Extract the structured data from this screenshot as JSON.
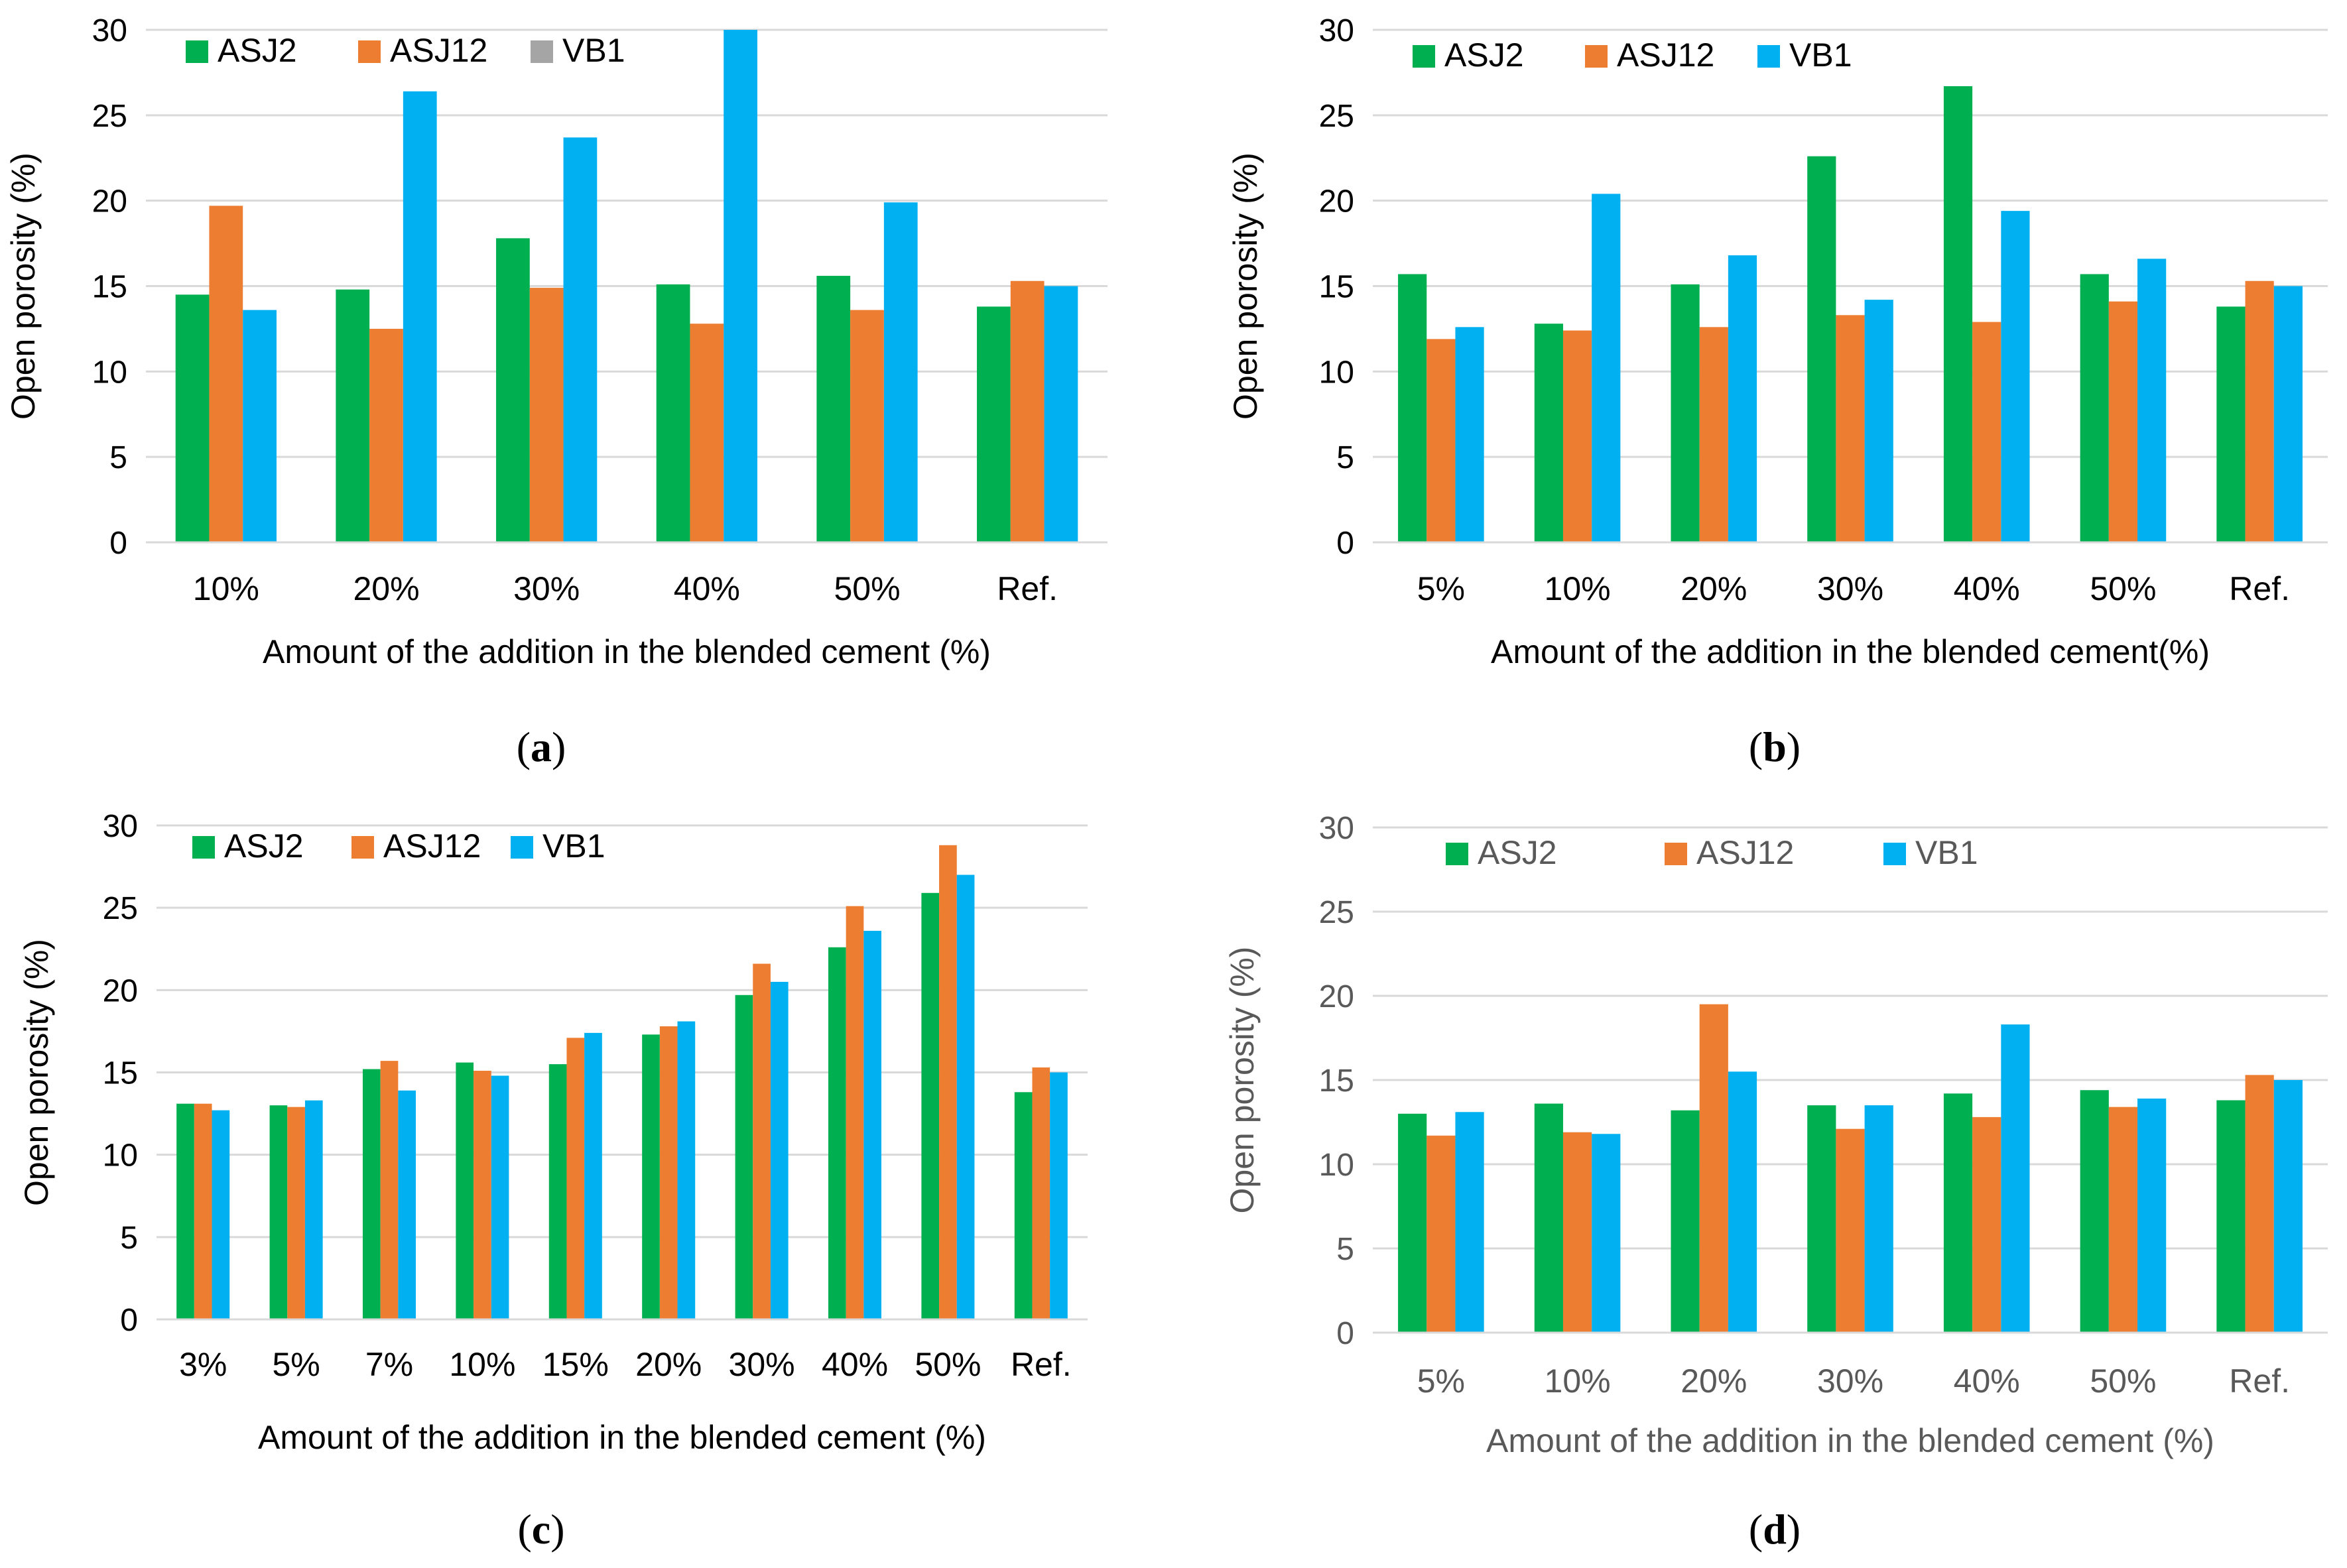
{
  "figure": {
    "colors": {
      "ASJ2": "#00B050",
      "ASJ12": "#ED7D31",
      "VB1": "#00B0F0",
      "VB1_legend_a": "#A5A5A5",
      "grid": "#D9D9D9",
      "text": "#000000",
      "text_d": "#595959"
    }
  },
  "chart_data": [
    {
      "panel": "a",
      "caption": "a",
      "type": "bar",
      "ylabel": "Open porosity (%)",
      "xlabel": "Amount of the addition in the blended cement (%)",
      "ylim": [
        0,
        30
      ],
      "yticks": [
        "0",
        "5",
        "10",
        "15",
        "20",
        "25",
        "30"
      ],
      "legend_position": "top-left",
      "categories": [
        "10%",
        "20%",
        "30%",
        "40%",
        "50%",
        "Ref."
      ],
      "series": [
        {
          "name": "ASJ2",
          "values": [
            14.5,
            14.8,
            17.8,
            15.1,
            15.6,
            13.8
          ]
        },
        {
          "name": "ASJ12",
          "values": [
            19.7,
            12.5,
            14.9,
            12.8,
            13.6,
            15.3
          ]
        },
        {
          "name": "VB1",
          "values": [
            13.6,
            26.4,
            23.7,
            30.0,
            19.9,
            15.0
          ]
        }
      ]
    },
    {
      "panel": "b",
      "caption": "b",
      "type": "bar",
      "ylabel": "Open porosity (%)",
      "xlabel": "Amount of the addition in the blended cement(%)",
      "ylim": [
        0,
        30
      ],
      "yticks": [
        "0",
        "5",
        "10",
        "15",
        "20",
        "25",
        "30"
      ],
      "legend_position": "top-left",
      "categories": [
        "5%",
        "10%",
        "20%",
        "30%",
        "40%",
        "50%",
        "Ref."
      ],
      "series": [
        {
          "name": "ASJ2",
          "values": [
            15.7,
            12.8,
            15.1,
            22.6,
            26.7,
            15.7,
            13.8
          ]
        },
        {
          "name": "ASJ12",
          "values": [
            11.9,
            12.4,
            12.6,
            13.3,
            12.9,
            14.1,
            15.3
          ]
        },
        {
          "name": "VB1",
          "values": [
            12.6,
            20.4,
            16.8,
            14.2,
            19.4,
            16.6,
            15.0
          ]
        }
      ]
    },
    {
      "panel": "c",
      "caption": "c",
      "type": "bar",
      "ylabel": "Open porosity (%)",
      "xlabel": "Amount of the addition in the blended cement (%)",
      "ylim": [
        0,
        30
      ],
      "yticks": [
        "0",
        "5",
        "10",
        "15",
        "20",
        "25",
        "30"
      ],
      "legend_position": "top-left",
      "categories": [
        "3%",
        "5%",
        "7%",
        "10%",
        "15%",
        "20%",
        "30%",
        "40%",
        "50%",
        "Ref."
      ],
      "series": [
        {
          "name": "ASJ2",
          "values": [
            13.1,
            13.0,
            15.2,
            15.6,
            15.5,
            17.3,
            19.7,
            22.6,
            25.9,
            13.8
          ]
        },
        {
          "name": "ASJ12",
          "values": [
            13.1,
            12.9,
            15.7,
            15.1,
            17.1,
            17.8,
            21.6,
            25.1,
            28.8,
            15.3
          ]
        },
        {
          "name": "VB1",
          "values": [
            12.7,
            13.3,
            13.9,
            14.8,
            17.4,
            18.1,
            20.5,
            23.6,
            27.0,
            15.0
          ]
        }
      ]
    },
    {
      "panel": "d",
      "caption": "d",
      "type": "bar",
      "ylabel": "Open porosity (%)",
      "xlabel": "Amount of the addition in the blended cement (%)",
      "ylim": [
        0,
        30
      ],
      "yticks": [
        "0",
        "5",
        "10",
        "15",
        "20",
        "25",
        "30"
      ],
      "legend_position": "top",
      "categories": [
        "5%",
        "10%",
        "20%",
        "30%",
        "40%",
        "50%",
        "Ref."
      ],
      "series": [
        {
          "name": "ASJ2",
          "values": [
            13.0,
            13.6,
            13.2,
            13.5,
            14.2,
            14.4,
            13.8
          ]
        },
        {
          "name": "ASJ12",
          "values": [
            11.7,
            11.9,
            19.5,
            12.1,
            12.8,
            13.4,
            15.3
          ]
        },
        {
          "name": "VB1",
          "values": [
            13.1,
            11.8,
            15.5,
            13.5,
            18.3,
            13.9,
            15.0
          ]
        }
      ]
    }
  ]
}
